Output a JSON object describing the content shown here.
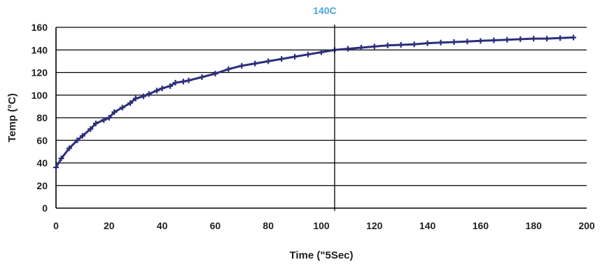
{
  "chart_data": {
    "type": "line",
    "title": "",
    "xlabel": "Time (\"5Sec)",
    "ylabel": "Temp (°C)",
    "xlim": [
      0,
      200
    ],
    "ylim": [
      0,
      160
    ],
    "x_ticks": [
      0,
      20,
      40,
      60,
      80,
      100,
      120,
      140,
      160,
      180,
      200
    ],
    "y_ticks": [
      0,
      20,
      40,
      60,
      80,
      100,
      120,
      140,
      160
    ],
    "grid": "horizontal",
    "legend": "none",
    "marker": "cross",
    "series_color": "#2b2f7a",
    "annotation": {
      "text": "140C",
      "x": 105,
      "color": "#4aa8d8"
    },
    "series": [
      {
        "x": [
          0,
          2,
          5,
          8,
          10,
          13,
          15,
          18,
          20,
          22,
          25,
          28,
          30,
          33,
          35,
          38,
          40,
          43,
          45,
          48,
          50,
          55,
          60,
          65,
          70,
          75,
          80,
          85,
          90,
          95,
          100,
          105,
          110,
          115,
          120,
          125,
          130,
          135,
          140,
          145,
          150,
          155,
          160,
          165,
          170,
          175,
          180,
          185,
          190,
          195
        ],
        "y": [
          36,
          44,
          53,
          60,
          64,
          70,
          75,
          78,
          80,
          85,
          89,
          93,
          97,
          99,
          101,
          104,
          106,
          108,
          111,
          112,
          113,
          116,
          119,
          123,
          126,
          128,
          130,
          132,
          134,
          136,
          138,
          140,
          141,
          142,
          143,
          144,
          144.5,
          145,
          146,
          146.5,
          147,
          147.5,
          148,
          148.5,
          149,
          149.5,
          150,
          150,
          150.5,
          151
        ]
      }
    ]
  }
}
